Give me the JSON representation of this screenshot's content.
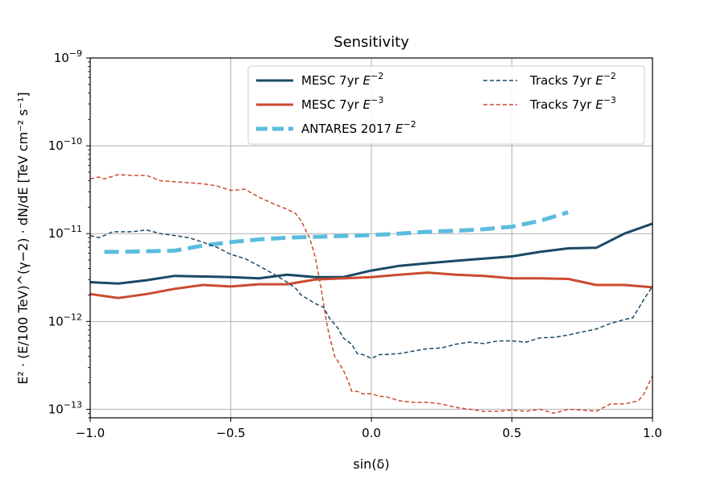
{
  "chart_data": {
    "type": "line",
    "title": "Sensitivity",
    "xlabel": "sin(δ)",
    "ylabel": "E² · (E/100 TeV)^(γ−2) · dN/dE  [TeV cm⁻² s⁻¹]",
    "xlim": [
      -1.0,
      1.0
    ],
    "ylim": [
      8e-14,
      1e-09
    ],
    "yscale": "log",
    "grid": true,
    "legend_position": "top-right",
    "x_ticks": [
      -1.0,
      -0.5,
      0.0,
      0.5,
      1.0
    ],
    "x_tick_labels": [
      "−1.0",
      "−0.5",
      "0.0",
      "0.5",
      "1.0"
    ],
    "y_ticks": [
      1e-13,
      1e-12,
      1e-11,
      1e-10,
      1e-09
    ],
    "y_tick_labels": [
      {
        "base": "10",
        "exp": "−13"
      },
      {
        "base": "10",
        "exp": "−12"
      },
      {
        "base": "10",
        "exp": "−11"
      },
      {
        "base": "10",
        "exp": "−10"
      },
      {
        "base": "10",
        "exp": "−9"
      }
    ],
    "series": [
      {
        "name": "MESC 7yr E⁻²",
        "legend_base": "MESC 7yr ",
        "legend_exp": "−2",
        "color": "#1a4a66",
        "style": "solid",
        "width": 3,
        "x": [
          -1.0,
          -0.9,
          -0.8,
          -0.7,
          -0.6,
          -0.5,
          -0.4,
          -0.3,
          -0.2,
          -0.1,
          0.0,
          0.1,
          0.2,
          0.3,
          0.4,
          0.5,
          0.6,
          0.7,
          0.8,
          0.9,
          1.0
        ],
        "y": [
          2.8e-12,
          2.7e-12,
          2.95e-12,
          3.3e-12,
          3.25e-12,
          3.2e-12,
          3.1e-12,
          3.4e-12,
          3.2e-12,
          3.2e-12,
          3.8e-12,
          4.3e-12,
          4.6e-12,
          4.9e-12,
          5.2e-12,
          5.5e-12,
          6.2e-12,
          6.8e-12,
          6.9e-12,
          1e-11,
          1.3e-11
        ]
      },
      {
        "name": "MESC 7yr E⁻³",
        "legend_base": "MESC 7yr ",
        "legend_exp": "−3",
        "color": "#cc4a2e",
        "style": "solid",
        "width": 3,
        "x": [
          -1.0,
          -0.9,
          -0.8,
          -0.7,
          -0.6,
          -0.5,
          -0.4,
          -0.3,
          -0.2,
          -0.1,
          0.0,
          0.1,
          0.2,
          0.3,
          0.4,
          0.5,
          0.6,
          0.7,
          0.8,
          0.9,
          1.0
        ],
        "y": [
          2.05e-12,
          1.85e-12,
          2.05e-12,
          2.35e-12,
          2.6e-12,
          2.5e-12,
          2.65e-12,
          2.65e-12,
          3e-12,
          3.1e-12,
          3.2e-12,
          3.4e-12,
          3.6e-12,
          3.4e-12,
          3.3e-12,
          3.1e-12,
          3.1e-12,
          3.05e-12,
          2.6e-12,
          2.6e-12,
          2.45e-12
        ]
      },
      {
        "name": "ANTARES 2017 E⁻²",
        "legend_base": "ANTARES 2017 ",
        "legend_exp": "−2",
        "color": "#5bbcdd",
        "style": "dashed-thick",
        "width": 5,
        "x": [
          -0.95,
          -0.9,
          -0.8,
          -0.7,
          -0.6,
          -0.5,
          -0.4,
          -0.3,
          -0.2,
          -0.1,
          0.0,
          0.1,
          0.2,
          0.3,
          0.4,
          0.5,
          0.6,
          0.7
        ],
        "y": [
          6.2e-12,
          6.2e-12,
          6.3e-12,
          6.4e-12,
          7.3e-12,
          8e-12,
          8.6e-12,
          9e-12,
          9.2e-12,
          9.4e-12,
          9.6e-12,
          1e-11,
          1.05e-11,
          1.08e-11,
          1.12e-11,
          1.2e-11,
          1.4e-11,
          1.75e-11
        ]
      },
      {
        "name": "Tracks 7yr E⁻²",
        "legend_base": "Tracks 7yr ",
        "legend_exp": "−2",
        "color": "#1a4a66",
        "style": "dashed-thin",
        "width": 1.5,
        "x": [
          -1.0,
          -0.97,
          -0.95,
          -0.92,
          -0.9,
          -0.85,
          -0.8,
          -0.75,
          -0.7,
          -0.65,
          -0.6,
          -0.55,
          -0.5,
          -0.45,
          -0.4,
          -0.35,
          -0.3,
          -0.27,
          -0.25,
          -0.22,
          -0.2,
          -0.17,
          -0.15,
          -0.12,
          -0.1,
          -0.07,
          -0.05,
          -0.03,
          0.0,
          0.03,
          0.05,
          0.1,
          0.15,
          0.2,
          0.25,
          0.3,
          0.35,
          0.4,
          0.45,
          0.5,
          0.55,
          0.6,
          0.65,
          0.7,
          0.75,
          0.8,
          0.85,
          0.9,
          0.93,
          0.95,
          0.97,
          1.0
        ],
        "y": [
          9.5e-12,
          9e-12,
          9.5e-12,
          1.05e-11,
          1.05e-11,
          1.05e-11,
          1.1e-11,
          1e-11,
          9.5e-12,
          9e-12,
          8e-12,
          7e-12,
          5.8e-12,
          5.2e-12,
          4.3e-12,
          3.5e-12,
          2.8e-12,
          2.4e-12,
          2e-12,
          1.75e-12,
          1.6e-12,
          1.45e-12,
          1.1e-12,
          8.5e-13,
          6.5e-13,
          5.5e-13,
          4.3e-13,
          4.2e-13,
          3.8e-13,
          4.2e-13,
          4.2e-13,
          4.3e-13,
          4.6e-13,
          4.9e-13,
          5e-13,
          5.5e-13,
          5.8e-13,
          5.6e-13,
          6e-13,
          6e-13,
          5.8e-13,
          6.5e-13,
          6.6e-13,
          7e-13,
          7.6e-13,
          8.2e-13,
          9.5e-13,
          1.05e-12,
          1.1e-12,
          1.4e-12,
          1.8e-12,
          2.5e-12
        ]
      },
      {
        "name": "Tracks 7yr E⁻³",
        "legend_base": "Tracks 7yr ",
        "legend_exp": "−3",
        "color": "#cc4a2e",
        "style": "dashed-thin",
        "width": 1.5,
        "x": [
          -1.0,
          -0.97,
          -0.95,
          -0.9,
          -0.85,
          -0.8,
          -0.75,
          -0.7,
          -0.65,
          -0.6,
          -0.55,
          -0.5,
          -0.45,
          -0.4,
          -0.35,
          -0.3,
          -0.27,
          -0.25,
          -0.22,
          -0.2,
          -0.18,
          -0.16,
          -0.15,
          -0.13,
          -0.1,
          -0.08,
          -0.07,
          -0.05,
          -0.03,
          0.0,
          0.03,
          0.05,
          0.1,
          0.15,
          0.2,
          0.25,
          0.3,
          0.35,
          0.4,
          0.45,
          0.5,
          0.55,
          0.6,
          0.65,
          0.7,
          0.75,
          0.8,
          0.85,
          0.9,
          0.95,
          0.97,
          1.0
        ],
        "y": [
          4.2e-11,
          4.4e-11,
          4.2e-11,
          4.7e-11,
          4.6e-11,
          4.6e-11,
          4e-11,
          3.9e-11,
          3.8e-11,
          3.7e-11,
          3.5e-11,
          3.1e-11,
          3.2e-11,
          2.6e-11,
          2.2e-11,
          1.9e-11,
          1.7e-11,
          1.4e-11,
          9e-12,
          5.5e-12,
          2.5e-12,
          1e-12,
          7e-13,
          4e-13,
          2.8e-13,
          2e-13,
          1.6e-13,
          1.6e-13,
          1.5e-13,
          1.5e-13,
          1.4e-13,
          1.4e-13,
          1.25e-13,
          1.2e-13,
          1.2e-13,
          1.15e-13,
          1.05e-13,
          1e-13,
          9.5e-14,
          9.5e-14,
          9.8e-14,
          9.5e-14,
          1e-13,
          9e-14,
          1e-13,
          9.8e-14,
          9.5e-14,
          1.15e-13,
          1.15e-13,
          1.25e-13,
          1.5e-13,
          2.4e-13
        ]
      }
    ]
  }
}
